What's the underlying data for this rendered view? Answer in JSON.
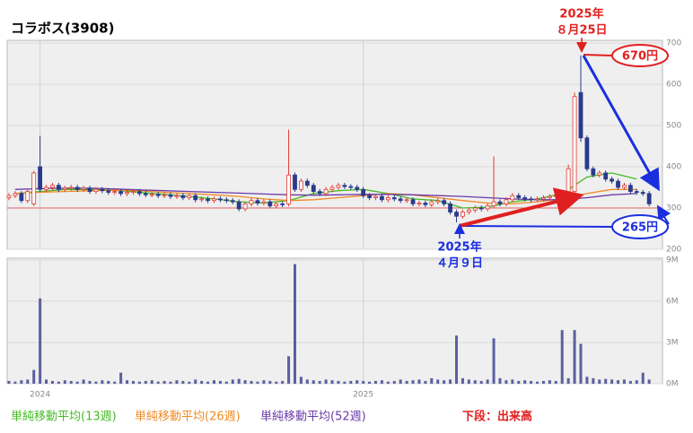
{
  "chart_data": {
    "type": "candlestick",
    "title": "コラボス(3908)",
    "x": [
      -5,
      -4,
      -3,
      -2,
      -1,
      0,
      1,
      2,
      3,
      4,
      5,
      6,
      7,
      8,
      9,
      10,
      11,
      12,
      13,
      14,
      15,
      16,
      17,
      18,
      19,
      20,
      21,
      22,
      23,
      24,
      25,
      26,
      27,
      28,
      29,
      30,
      31,
      32,
      33,
      34,
      35,
      36,
      37,
      38,
      39,
      40,
      41,
      42,
      43,
      44,
      45,
      46,
      47,
      48,
      49,
      50,
      51,
      52,
      53,
      54,
      55,
      56,
      57,
      58,
      59,
      60,
      61,
      62,
      63,
      64,
      65,
      66,
      67,
      68,
      69,
      70,
      71,
      72,
      73,
      74,
      75,
      76,
      77,
      78,
      79,
      80,
      81,
      82,
      83,
      84,
      85,
      86,
      87,
      88,
      89,
      90,
      91,
      92,
      93,
      94,
      95,
      96,
      97,
      98
    ],
    "xlim": [
      -5,
      100
    ],
    "xticks": [
      {
        "value": 0,
        "label": "2024"
      },
      {
        "value": 52,
        "label": "2025"
      }
    ],
    "open": [
      325,
      330,
      335,
      318,
      310,
      400,
      345,
      350,
      355,
      345,
      348,
      350,
      345,
      348,
      340,
      345,
      342,
      338,
      340,
      335,
      338,
      340,
      335,
      332,
      333,
      330,
      332,
      328,
      330,
      325,
      330,
      320,
      322,
      318,
      322,
      320,
      318,
      315,
      298,
      310,
      318,
      312,
      315,
      305,
      310,
      310,
      380,
      345,
      365,
      355,
      340,
      335,
      345,
      350,
      355,
      352,
      350,
      345,
      330,
      325,
      328,
      320,
      325,
      322,
      318,
      320,
      310,
      312,
      308,
      315,
      318,
      310,
      290,
      280,
      290,
      295,
      300,
      298,
      305,
      315,
      310,
      320,
      330,
      325,
      322,
      320,
      322,
      325,
      328,
      330,
      335,
      340,
      580,
      470,
      395,
      380,
      385,
      370,
      365,
      350,
      355,
      340,
      338,
      335
    ],
    "high": [
      336,
      341,
      341,
      346,
      390,
      475,
      356,
      361,
      361,
      354,
      356,
      356,
      354,
      354,
      351,
      351,
      348,
      346,
      346,
      344,
      346,
      346,
      341,
      339,
      339,
      338,
      338,
      336,
      336,
      336,
      336,
      328,
      328,
      328,
      328,
      326,
      324,
      321,
      316,
      324,
      324,
      321,
      321,
      316,
      316,
      490,
      386,
      371,
      371,
      361,
      346,
      351,
      356,
      361,
      361,
      358,
      356,
      351,
      336,
      334,
      334,
      331,
      331,
      328,
      326,
      326,
      318,
      318,
      321,
      324,
      324,
      316,
      296,
      296,
      301,
      306,
      306,
      311,
      425,
      321,
      326,
      336,
      336,
      331,
      328,
      328,
      331,
      334,
      336,
      341,
      405,
      580,
      670,
      476,
      401,
      391,
      391,
      376,
      371,
      361,
      361,
      346,
      344,
      341
    ],
    "low": [
      319,
      324,
      312,
      312,
      305,
      339,
      339,
      344,
      339,
      339,
      342,
      339,
      339,
      334,
      334,
      336,
      332,
      332,
      329,
      329,
      332,
      329,
      326,
      326,
      324,
      324,
      322,
      322,
      319,
      319,
      314,
      314,
      312,
      312,
      314,
      312,
      309,
      292,
      292,
      304,
      306,
      306,
      299,
      299,
      302,
      304,
      339,
      339,
      349,
      334,
      329,
      329,
      339,
      344,
      346,
      344,
      339,
      324,
      319,
      319,
      314,
      314,
      316,
      312,
      312,
      304,
      304,
      302,
      302,
      309,
      304,
      284,
      265,
      274,
      284,
      289,
      292,
      292,
      299,
      304,
      304,
      314,
      319,
      316,
      314,
      314,
      316,
      319,
      322,
      324,
      329,
      334,
      460,
      389,
      374,
      374,
      364,
      359,
      344,
      344,
      334,
      332,
      329,
      304
    ],
    "close": [
      330,
      335,
      318,
      340,
      385,
      345,
      350,
      355,
      345,
      348,
      350,
      345,
      348,
      340,
      345,
      342,
      338,
      340,
      335,
      338,
      340,
      335,
      332,
      333,
      330,
      332,
      328,
      330,
      325,
      330,
      320,
      322,
      318,
      322,
      320,
      318,
      315,
      298,
      310,
      318,
      312,
      315,
      305,
      310,
      308,
      380,
      345,
      365,
      355,
      340,
      335,
      345,
      350,
      355,
      352,
      350,
      345,
      330,
      325,
      328,
      320,
      325,
      322,
      318,
      320,
      310,
      312,
      308,
      315,
      318,
      310,
      290,
      280,
      290,
      295,
      300,
      298,
      305,
      315,
      310,
      320,
      330,
      325,
      322,
      320,
      322,
      325,
      328,
      330,
      335,
      395,
      570,
      470,
      395,
      380,
      385,
      370,
      365,
      350,
      355,
      340,
      338,
      335,
      310
    ],
    "up_color": "#e03a32",
    "down_color": "#2a3a8c",
    "ylim": [
      200,
      700
    ],
    "yticks": [
      200,
      300,
      400,
      500,
      600,
      700
    ],
    "grid": true,
    "hline": {
      "value": 300,
      "color": "#e06060"
    },
    "series": [
      {
        "name": "単純移動平均(13週)",
        "color": "#44bb22",
        "x": [
          -4,
          0,
          4,
          8,
          12,
          16,
          20,
          24,
          28,
          32,
          36,
          40,
          44,
          48,
          52,
          56,
          60,
          64,
          68,
          72,
          76,
          80,
          84,
          88,
          92,
          96
        ],
        "values": [
          335,
          340,
          345,
          345,
          343,
          338,
          333,
          328,
          322,
          315,
          312,
          318,
          335,
          342,
          345,
          335,
          322,
          318,
          300,
          302,
          315,
          322,
          335,
          375,
          385,
          370
        ]
      },
      {
        "name": "単純移動平均(26週)",
        "color": "#f08a24",
        "x": [
          -4,
          0,
          4,
          8,
          12,
          16,
          20,
          24,
          28,
          32,
          36,
          40,
          44,
          48,
          52,
          56,
          60,
          64,
          68,
          72,
          76,
          80,
          84,
          88,
          92,
          96
        ],
        "values": [
          335,
          338,
          340,
          342,
          343,
          342,
          338,
          335,
          332,
          328,
          322,
          318,
          320,
          325,
          330,
          335,
          332,
          325,
          318,
          312,
          310,
          315,
          322,
          335,
          345,
          345
        ]
      },
      {
        "name": "単純移動平均(52週)",
        "color": "#6a3aa8",
        "x": [
          -4,
          0,
          4,
          8,
          12,
          16,
          20,
          24,
          28,
          32,
          36,
          40,
          44,
          48,
          52,
          56,
          60,
          64,
          68,
          72,
          76,
          80,
          84,
          88,
          92,
          96
        ],
        "values": [
          345,
          347,
          348,
          348,
          346,
          344,
          342,
          340,
          338,
          336,
          334,
          332,
          331,
          332,
          333,
          333,
          332,
          330,
          328,
          325,
          322,
          320,
          320,
          325,
          332,
          335
        ]
      }
    ],
    "volume": {
      "type": "bar",
      "title": "下段：出来高",
      "color": "#5c5f9f",
      "values": [
        200000,
        150000,
        250000,
        300000,
        1000000,
        6200000,
        300000,
        200000,
        150000,
        250000,
        200000,
        150000,
        300000,
        200000,
        150000,
        250000,
        200000,
        150000,
        800000,
        250000,
        200000,
        150000,
        200000,
        250000,
        150000,
        200000,
        150000,
        250000,
        200000,
        150000,
        300000,
        200000,
        150000,
        250000,
        200000,
        150000,
        300000,
        350000,
        250000,
        200000,
        150000,
        250000,
        200000,
        150000,
        200000,
        2000000,
        8700000,
        500000,
        300000,
        250000,
        200000,
        300000,
        250000,
        200000,
        150000,
        200000,
        250000,
        200000,
        150000,
        200000,
        250000,
        150000,
        200000,
        300000,
        200000,
        250000,
        300000,
        200000,
        400000,
        300000,
        250000,
        300000,
        3500000,
        400000,
        300000,
        250000,
        200000,
        300000,
        3300000,
        400000,
        250000,
        300000,
        200000,
        250000,
        200000,
        150000,
        200000,
        250000,
        200000,
        3900000,
        400000,
        3900000,
        2900000,
        500000,
        400000,
        300000,
        350000,
        300000,
        250000,
        300000,
        200000,
        250000,
        800000,
        300000
      ],
      "ylim": [
        0,
        9000000
      ],
      "yticks": [
        {
          "value": 0,
          "label": "0M"
        },
        {
          "value": 3000000,
          "label": "3M"
        },
        {
          "value": 6000000,
          "label": "6M"
        },
        {
          "value": 9000000,
          "label": "9M"
        }
      ]
    },
    "annotations": [
      "2025年",
      "８月25日",
      "670円",
      "265円",
      "2025年",
      "４月９日"
    ]
  }
}
